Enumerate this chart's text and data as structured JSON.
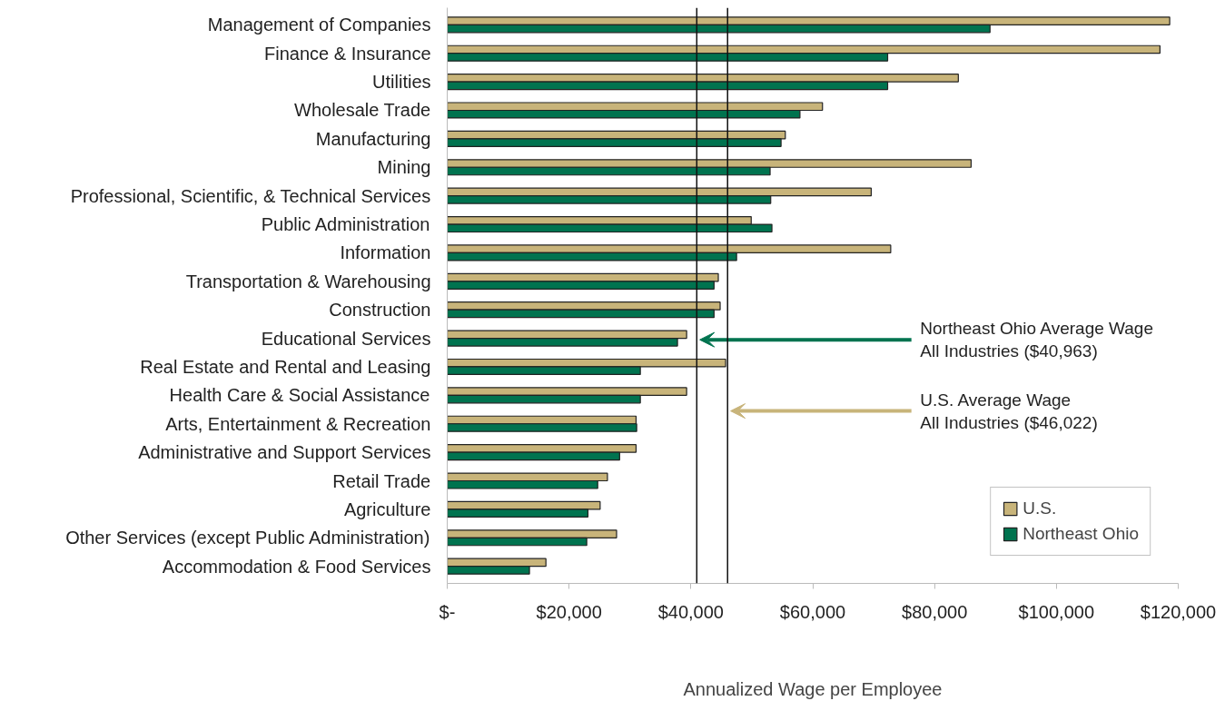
{
  "chart_data": {
    "type": "bar",
    "orientation": "horizontal",
    "xlabel": "Annualized Wage per Employee",
    "categories": [
      "Management of Companies",
      "Finance & Insurance",
      "Utilities",
      "Wholesale Trade",
      "Manufacturing",
      "Mining",
      "Professional, Scientific, & Technical Services",
      "Public Administration",
      "Information",
      "Transportation & Warehousing",
      "Construction",
      "Educational Services",
      "Real Estate and Rental and Leasing",
      "Health Care & Social Assistance",
      "Arts, Entertainment & Recreation",
      "Administrative and Support Services",
      "Retail Trade",
      "Agriculture",
      "Other Services (except Public Administration)",
      "Accommodation & Food Services"
    ],
    "series": [
      {
        "name": "U.S.",
        "color": "#c8b47a",
        "values": [
          118600,
          117000,
          83900,
          61600,
          55500,
          86000,
          69600,
          49900,
          72800,
          44500,
          44800,
          39300,
          45700,
          39300,
          31000,
          31000,
          26300,
          25100,
          27800,
          16200
        ]
      },
      {
        "name": "Northeast Ohio",
        "color": "#00734f",
        "values": [
          89100,
          72300,
          72300,
          57900,
          54800,
          53000,
          53100,
          53300,
          47500,
          43800,
          43800,
          37800,
          31700,
          31700,
          31100,
          28300,
          24700,
          23100,
          22900,
          13500
        ]
      }
    ],
    "xlim": [
      0,
      120000
    ],
    "xticks": [
      {
        "value": 0,
        "label": "$-"
      },
      {
        "value": 20000,
        "label": "$20,000"
      },
      {
        "value": 40000,
        "label": "$40,000"
      },
      {
        "value": 60000,
        "label": "$60,000"
      },
      {
        "value": 80000,
        "label": "$80,000"
      },
      {
        "value": 100000,
        "label": "$100,000"
      },
      {
        "value": 120000,
        "label": "$120,000"
      }
    ],
    "ref_lines": [
      {
        "axis": "x",
        "value": 40963,
        "label": "Northeast Ohio Average Wage\nAll Industries ($40,963)"
      },
      {
        "axis": "x",
        "value": 46022,
        "label": "U.S. Average Wage\nAll Industries ($46,022)"
      }
    ],
    "legend": "bottom right",
    "grid": false
  }
}
